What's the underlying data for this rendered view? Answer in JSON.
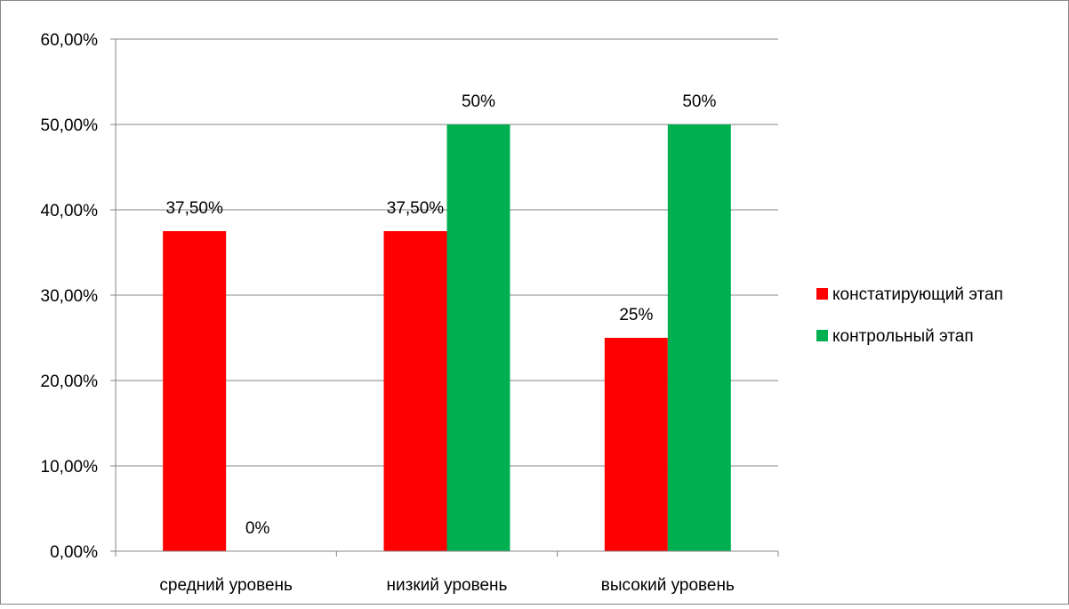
{
  "chart_data": {
    "type": "bar",
    "categories": [
      "средний уровень",
      "низкий уровень",
      "высокий уровень"
    ],
    "series": [
      {
        "name": "констатирующий этап",
        "color": "#ff0000",
        "values": [
          37.5,
          37.5,
          25
        ],
        "labels": [
          "37,50%",
          "37,50%",
          "25%"
        ]
      },
      {
        "name": "контрольный этап",
        "color": "#00b050",
        "values": [
          0,
          50,
          50
        ],
        "labels": [
          "0%",
          "50%",
          "50%"
        ]
      }
    ],
    "y_ticks": [
      "0,00%",
      "10,00%",
      "20,00%",
      "30,00%",
      "40,00%",
      "50,00%",
      "60,00%"
    ],
    "ylim": [
      0,
      60
    ],
    "grid": true,
    "legend_position": "right",
    "colors": {
      "gridline": "#868686",
      "border": "#868686",
      "background": "#ffffff"
    }
  }
}
